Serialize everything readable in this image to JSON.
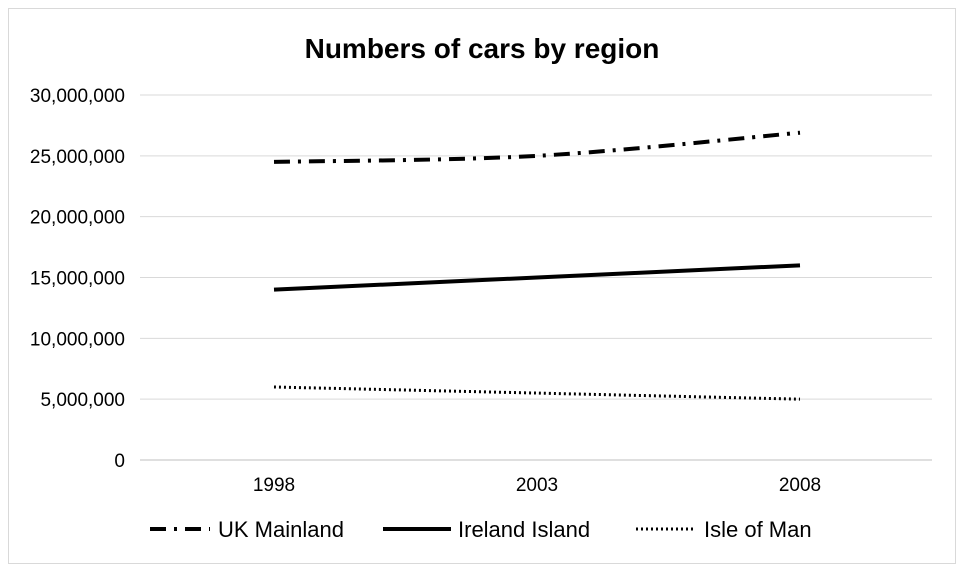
{
  "chart_data": {
    "type": "line",
    "title": "Numbers of cars by region",
    "xlabel": "",
    "ylabel": "",
    "categories": [
      "1998",
      "2003",
      "2008"
    ],
    "ylim": [
      0,
      30000000
    ],
    "y_ticks": [
      0,
      5000000,
      10000000,
      15000000,
      20000000,
      25000000,
      30000000
    ],
    "y_tick_labels": [
      "0",
      "5,000,000",
      "10,000,000",
      "15,000,000",
      "20,000,000",
      "25,000,000",
      "30,000,000"
    ],
    "grid": true,
    "legend": "bottom",
    "series": [
      {
        "name": "UK Mainland",
        "values": [
          24500000,
          25000000,
          26900000
        ],
        "style": "dash-dot",
        "color": "#000000"
      },
      {
        "name": "Ireland Island",
        "values": [
          14000000,
          15000000,
          16000000
        ],
        "style": "solid",
        "color": "#000000"
      },
      {
        "name": "Isle of Man",
        "values": [
          6000000,
          5500000,
          5000000
        ],
        "style": "dotted",
        "color": "#000000"
      }
    ]
  }
}
